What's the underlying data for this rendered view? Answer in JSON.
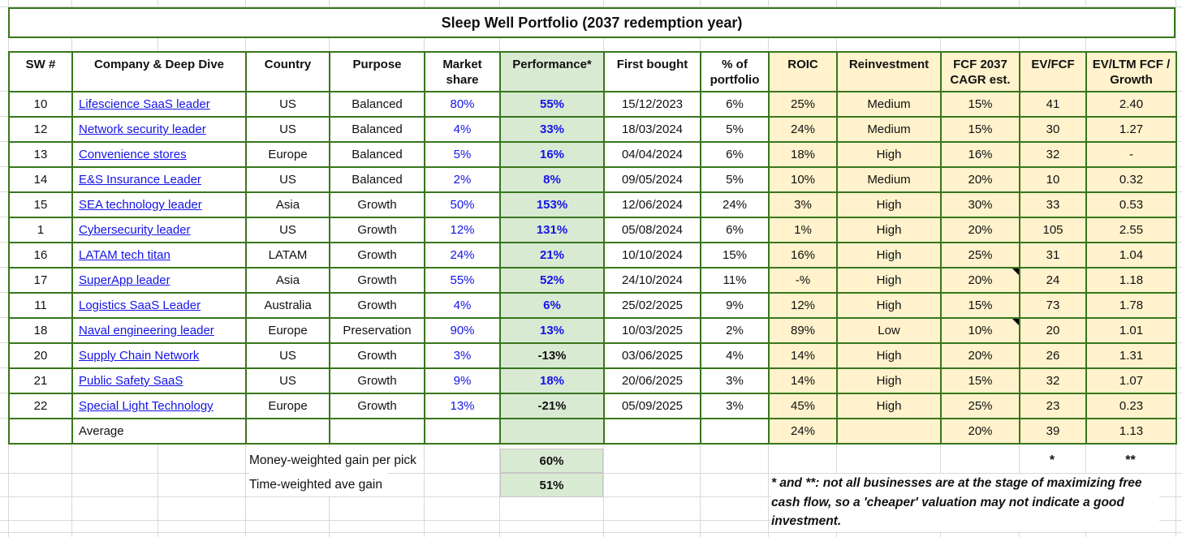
{
  "title": "Sleep Well Portfolio (2037 redemption year)",
  "colors": {
    "border_green": "#38761d",
    "fill_green": "#d9ead3",
    "fill_cream": "#fff2cc",
    "link_blue": "#1414e6",
    "gridline_gray": "#d9d9d9"
  },
  "table": {
    "headers": [
      {
        "label": "SW #",
        "fill": "none"
      },
      {
        "label": "Company & Deep Dive",
        "fill": "none"
      },
      {
        "label": "Country",
        "fill": "none"
      },
      {
        "label": "Purpose",
        "fill": "none"
      },
      {
        "label": "Market share",
        "fill": "none"
      },
      {
        "label": "Performance*",
        "fill": "green"
      },
      {
        "label": "First bought",
        "fill": "none"
      },
      {
        "label": "% of portfolio",
        "fill": "none"
      },
      {
        "label": "ROIC",
        "fill": "cream"
      },
      {
        "label": "Reinvestment",
        "fill": "cream"
      },
      {
        "label": "FCF 2037 CAGR est.",
        "fill": "cream"
      },
      {
        "label": "EV/FCF",
        "fill": "cream"
      },
      {
        "label": "EV/LTM FCF / Growth",
        "fill": "cream"
      }
    ],
    "rows": [
      {
        "sw": "10",
        "company": "Lifescience SaaS leader",
        "country": "US",
        "purpose": "Balanced",
        "market_share": "80%",
        "performance": "55%",
        "performance_negative": false,
        "first_bought": "15/12/2023",
        "pct_portfolio": "6%",
        "roic": "25%",
        "reinvestment": "Medium",
        "fcf_cagr": "15%",
        "fcf_comment": false,
        "ev_fcf": "41",
        "ev_ltm": "2.40"
      },
      {
        "sw": "12",
        "company": "Network security leader",
        "country": "US",
        "purpose": "Balanced",
        "market_share": "4%",
        "performance": "33%",
        "performance_negative": false,
        "first_bought": "18/03/2024",
        "pct_portfolio": "5%",
        "roic": "24%",
        "reinvestment": "Medium",
        "fcf_cagr": "15%",
        "fcf_comment": false,
        "ev_fcf": "30",
        "ev_ltm": "1.27"
      },
      {
        "sw": "13",
        "company": "Convenience stores",
        "country": "Europe",
        "purpose": "Balanced",
        "market_share": "5%",
        "performance": "16%",
        "performance_negative": false,
        "first_bought": "04/04/2024",
        "pct_portfolio": "6%",
        "roic": "18%",
        "reinvestment": "High",
        "fcf_cagr": "16%",
        "fcf_comment": false,
        "ev_fcf": "32",
        "ev_ltm": "-"
      },
      {
        "sw": "14",
        "company": "E&S Insurance Leader",
        "country": "US",
        "purpose": "Balanced",
        "market_share": "2%",
        "performance": "8%",
        "performance_negative": false,
        "first_bought": "09/05/2024",
        "pct_portfolio": "5%",
        "roic": "10%",
        "reinvestment": "Medium",
        "fcf_cagr": "20%",
        "fcf_comment": false,
        "ev_fcf": "10",
        "ev_ltm": "0.32"
      },
      {
        "sw": "15",
        "company": "SEA technology leader",
        "country": "Asia",
        "purpose": "Growth",
        "market_share": "50%",
        "performance": "153%",
        "performance_negative": false,
        "first_bought": "12/06/2024",
        "pct_portfolio": "24%",
        "roic": "3%",
        "reinvestment": "High",
        "fcf_cagr": "30%",
        "fcf_comment": false,
        "ev_fcf": "33",
        "ev_ltm": "0.53"
      },
      {
        "sw": "1",
        "company": "Cybersecurity leader",
        "country": "US",
        "purpose": "Growth",
        "market_share": "12%",
        "performance": "131%",
        "performance_negative": false,
        "first_bought": "05/08/2024",
        "pct_portfolio": "6%",
        "roic": "1%",
        "reinvestment": "High",
        "fcf_cagr": "20%",
        "fcf_comment": false,
        "ev_fcf": "105",
        "ev_ltm": "2.55"
      },
      {
        "sw": "16",
        "company": "LATAM tech titan",
        "country": "LATAM",
        "purpose": "Growth",
        "market_share": "24%",
        "performance": "21%",
        "performance_negative": false,
        "first_bought": "10/10/2024",
        "pct_portfolio": "15%",
        "roic": "16%",
        "reinvestment": "High",
        "fcf_cagr": "25%",
        "fcf_comment": false,
        "ev_fcf": "31",
        "ev_ltm": "1.04"
      },
      {
        "sw": "17",
        "company": "SuperApp leader",
        "country": "Asia",
        "purpose": "Growth",
        "market_share": "55%",
        "performance": "52%",
        "performance_negative": false,
        "first_bought": "24/10/2024",
        "pct_portfolio": "11%",
        "roic": "-%",
        "reinvestment": "High",
        "fcf_cagr": "20%",
        "fcf_comment": true,
        "ev_fcf": "24",
        "ev_ltm": "1.18"
      },
      {
        "sw": "11",
        "company": "Logistics SaaS Leader",
        "country": "Australia",
        "purpose": "Growth",
        "market_share": "4%",
        "performance": "6%",
        "performance_negative": false,
        "first_bought": "25/02/2025",
        "pct_portfolio": "9%",
        "roic": "12%",
        "reinvestment": "High",
        "fcf_cagr": "15%",
        "fcf_comment": false,
        "ev_fcf": "73",
        "ev_ltm": "1.78"
      },
      {
        "sw": "18",
        "company": "Naval engineering leader",
        "country": "Europe",
        "purpose": "Preservation",
        "market_share": "90%",
        "performance": "13%",
        "performance_negative": false,
        "first_bought": "10/03/2025",
        "pct_portfolio": "2%",
        "roic": "89%",
        "reinvestment": "Low",
        "fcf_cagr": "10%",
        "fcf_comment": true,
        "ev_fcf": "20",
        "ev_ltm": "1.01"
      },
      {
        "sw": "20",
        "company": "Supply Chain Network",
        "country": "US",
        "purpose": "Growth",
        "market_share": "3%",
        "performance": "-13%",
        "performance_negative": true,
        "first_bought": "03/06/2025",
        "pct_portfolio": "4%",
        "roic": "14%",
        "reinvestment": "High",
        "fcf_cagr": "20%",
        "fcf_comment": false,
        "ev_fcf": "26",
        "ev_ltm": "1.31"
      },
      {
        "sw": "21",
        "company": "Public Safety SaaS",
        "country": "US",
        "purpose": "Growth",
        "market_share": "9%",
        "performance": "18%",
        "performance_negative": false,
        "first_bought": "20/06/2025",
        "pct_portfolio": "3%",
        "roic": "14%",
        "reinvestment": "High",
        "fcf_cagr": "15%",
        "fcf_comment": false,
        "ev_fcf": "32",
        "ev_ltm": "1.07"
      },
      {
        "sw": "22",
        "company": "Special Light Technology",
        "country": "Europe",
        "purpose": "Growth",
        "market_share": "13%",
        "performance": "-21%",
        "performance_negative": true,
        "first_bought": "05/09/2025",
        "pct_portfolio": "3%",
        "roic": "45%",
        "reinvestment": "High",
        "fcf_cagr": "25%",
        "fcf_comment": false,
        "ev_fcf": "23",
        "ev_ltm": "0.23"
      }
    ],
    "average": {
      "label": "Average",
      "roic": "24%",
      "fcf_cagr": "20%",
      "ev_fcf": "39",
      "ev_ltm": "1.13"
    }
  },
  "summary": {
    "money_weighted": {
      "label": "Money-weighted gain per pick",
      "value": "60%"
    },
    "time_weighted": {
      "label": "Time-weighted ave gain",
      "value": "51%"
    },
    "ev_fcf_marker": "*",
    "ev_ltm_marker": "**"
  },
  "footnote": {
    "text": "* and **: not all businesses are at the stage of maximizing free cash flow, so a 'cheaper' valuation may not indicate a good investment."
  }
}
